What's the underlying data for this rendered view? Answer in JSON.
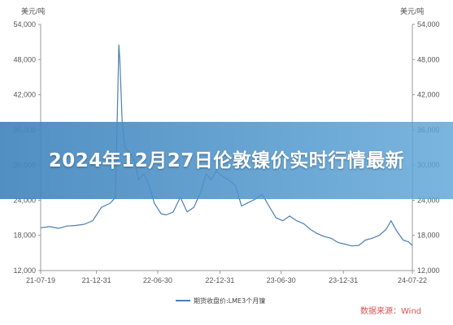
{
  "banner": {
    "title": "2024年12月27日伦敦镍价实时行情最新"
  },
  "colors": {
    "line": "#4a7fb5",
    "axis": "#999999",
    "grid": "#e6e6e6",
    "banner": "#4a8cc4",
    "source": "#d9534f"
  },
  "chart_data": {
    "type": "line",
    "unit_left": "美元/吨",
    "unit_right": "美元/吨",
    "ylim": [
      12000,
      54000
    ],
    "yticks": [
      "54,000",
      "48,000",
      "42,000",
      "36,000",
      "30,000",
      "24,000",
      "18,000",
      "12,000"
    ],
    "ytick_values": [
      54000,
      48000,
      42000,
      36000,
      30000,
      24000,
      18000,
      12000
    ],
    "xticks": [
      "21-07-19",
      "21-12-31",
      "22-06-30",
      "22-12-31",
      "23-06-30",
      "23-12-31",
      "24-07-22"
    ],
    "xtick_dates": [
      "2021-07-19",
      "2021-12-31",
      "2022-06-30",
      "2022-12-31",
      "2023-06-30",
      "2023-12-31",
      "2024-07-22"
    ],
    "xlim": [
      "2021-07-19",
      "2024-07-22"
    ],
    "legend_position": "bottom",
    "source": "数据来源：Wind",
    "series": [
      {
        "name": "期货收盘价:LME3个月镍",
        "x": [
          "2021-07-19",
          "2021-08-15",
          "2021-09-10",
          "2021-10-05",
          "2021-11-01",
          "2021-11-25",
          "2021-12-20",
          "2022-01-15",
          "2022-02-10",
          "2022-02-25",
          "2022-03-04",
          "2022-03-07",
          "2022-03-10",
          "2022-03-17",
          "2022-03-25",
          "2022-04-10",
          "2022-04-20",
          "2022-05-05",
          "2022-05-20",
          "2022-06-05",
          "2022-06-20",
          "2022-07-10",
          "2022-07-25",
          "2022-08-15",
          "2022-09-05",
          "2022-09-25",
          "2022-10-15",
          "2022-11-05",
          "2022-11-20",
          "2022-12-05",
          "2022-12-20",
          "2023-01-10",
          "2023-01-25",
          "2023-02-15",
          "2023-03-05",
          "2023-03-25",
          "2023-04-15",
          "2023-05-05",
          "2023-05-25",
          "2023-06-15",
          "2023-07-05",
          "2023-07-25",
          "2023-08-15",
          "2023-09-05",
          "2023-09-25",
          "2023-10-15",
          "2023-11-05",
          "2023-11-25",
          "2023-12-15",
          "2024-01-05",
          "2024-01-25",
          "2024-02-15",
          "2024-03-05",
          "2024-03-25",
          "2024-04-15",
          "2024-05-05",
          "2024-05-20",
          "2024-06-05",
          "2024-06-25",
          "2024-07-10",
          "2024-07-22"
        ],
        "y": [
          19300,
          19500,
          19200,
          19600,
          19700,
          19900,
          20500,
          22800,
          23500,
          24500,
          42000,
          50500,
          48000,
          37500,
          33000,
          32000,
          31000,
          27500,
          28500,
          26500,
          23500,
          21700,
          21500,
          22000,
          24500,
          22000,
          22800,
          25500,
          28500,
          27500,
          29000,
          28000,
          27500,
          26500,
          23000,
          23600,
          24200,
          25000,
          23000,
          21000,
          20500,
          21300,
          20500,
          20000,
          19000,
          18300,
          17800,
          17500,
          16800,
          16500,
          16200,
          16300,
          17200,
          17500,
          18000,
          19000,
          20500,
          18800,
          17200,
          16900,
          16300
        ]
      }
    ]
  }
}
